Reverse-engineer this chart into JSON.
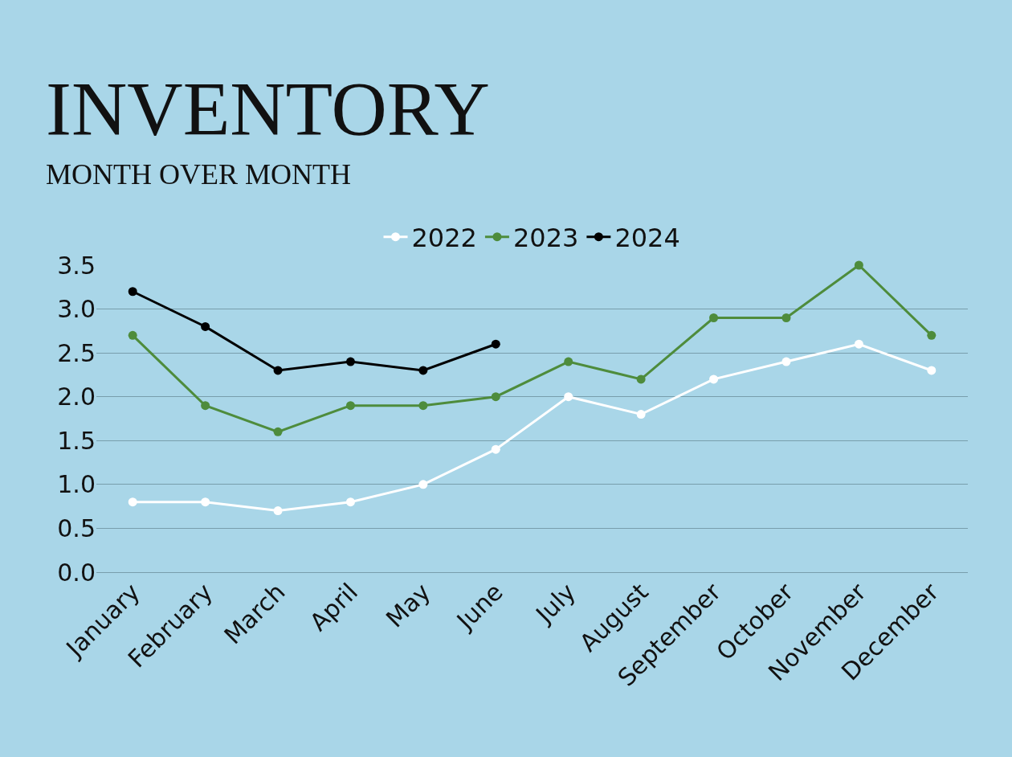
{
  "chart_data": {
    "type": "line",
    "title": "INVENTORY",
    "subtitle": "MONTH OVER MONTH",
    "categories": [
      "January",
      "February",
      "March",
      "April",
      "May",
      "June",
      "July",
      "August",
      "September",
      "October",
      "November",
      "December"
    ],
    "series": [
      {
        "name": "2022",
        "color": "#ffffff",
        "values": [
          0.8,
          0.8,
          0.7,
          0.8,
          1.0,
          1.4,
          2.0,
          1.8,
          2.2,
          2.4,
          2.6,
          2.3
        ]
      },
      {
        "name": "2023",
        "color": "#4e8c3c",
        "values": [
          2.7,
          1.9,
          1.6,
          1.9,
          1.9,
          2.0,
          2.4,
          2.2,
          2.9,
          2.9,
          3.5,
          2.7
        ]
      },
      {
        "name": "2024",
        "color": "#000000",
        "values": [
          3.2,
          2.8,
          2.3,
          2.4,
          2.3,
          2.6,
          null,
          null,
          null,
          null,
          null,
          null
        ]
      }
    ],
    "ylim": [
      0,
      3.5
    ],
    "yticks": [
      {
        "value": 0,
        "label": "0.0"
      },
      0.5,
      {
        "value": 1,
        "label": "1.0"
      },
      1.5,
      {
        "value": 2,
        "label": "2.0"
      },
      2.5,
      {
        "value": 3,
        "label": "3.0"
      },
      3.5
    ],
    "grid": "y",
    "legend": "top",
    "marker": "circle",
    "line_style": "solid"
  }
}
